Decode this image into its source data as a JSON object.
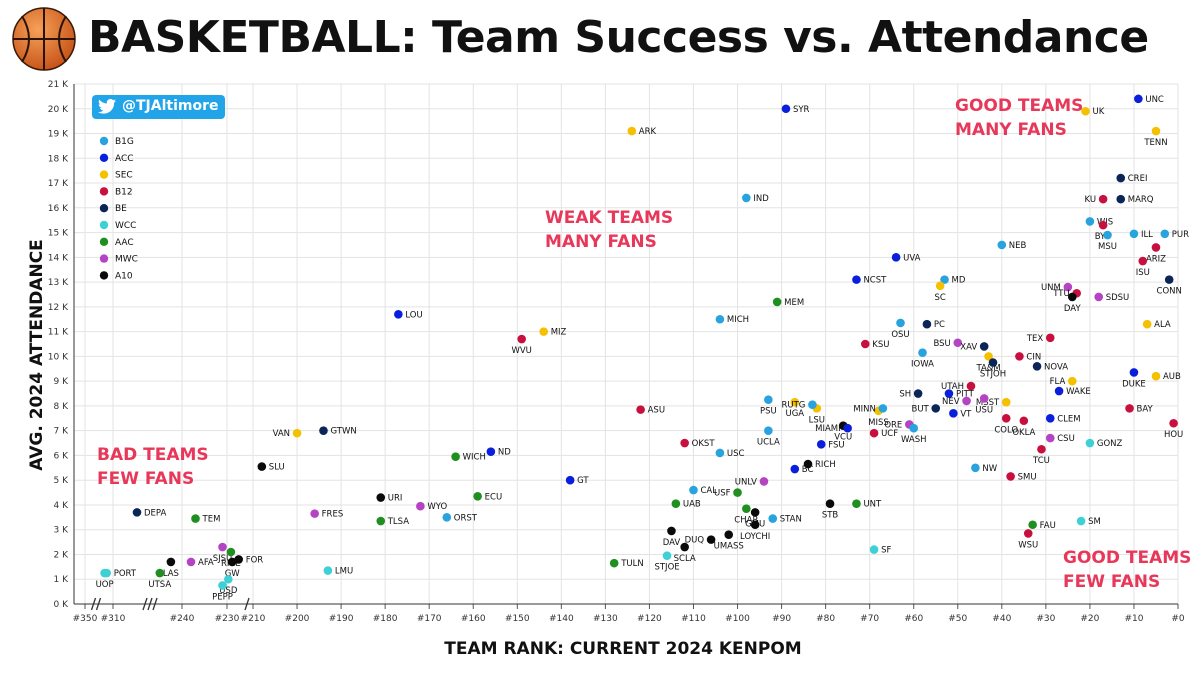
{
  "title": "BASKETBALL:  Team Success vs. Attendance",
  "twitter": {
    "handle": "@TJAltimore"
  },
  "zones": {
    "good_many": [
      "GOOD TEAMS",
      "MANY FANS"
    ],
    "weak_many": [
      "WEAK TEAMS",
      "MANY FANS"
    ],
    "bad_few": [
      "BAD TEAMS",
      "FEW FANS"
    ],
    "good_few": [
      "GOOD TEAMS",
      "FEW FANS"
    ]
  },
  "colors": {
    "B1G": "#29a3de",
    "ACC": "#0a1fdc",
    "SEC": "#f5c000",
    "B12": "#c8103e",
    "BE": "#0b2557",
    "WCC": "#3fd0d6",
    "AAC": "#1f8f1f",
    "MWC": "#b544c4",
    "A10": "#0a0a0a",
    "zone": "#e8385a",
    "twitter": "#21a5e8"
  },
  "chart_data": {
    "type": "scatter",
    "xlabel": "TEAM RANK: CURRENT 2024 KENPOM",
    "ylabel": "AVG. 2024 ATTENDANCE",
    "ylim": [
      0,
      21
    ],
    "x_reversed": true,
    "x_axis_break": true,
    "y_ticks": [
      "0 K",
      "1 K",
      "2 K",
      "3 K",
      "4 K",
      "5 K",
      "6 K",
      "7 K",
      "8 K",
      "9 K",
      "10 K",
      "11 K",
      "12 K",
      "13 K",
      "14 K",
      "15 K",
      "16 K",
      "17 K",
      "18 K",
      "19 K",
      "20 K",
      "21 K"
    ],
    "x_ticks": [
      "#350",
      "#310",
      "#240",
      "#230",
      "#210",
      "#200",
      "#190",
      "#180",
      "#170",
      "#160",
      "#150",
      "#140",
      "#130",
      "#120",
      "#110",
      "#100",
      "#90",
      "#80",
      "#70",
      "#60",
      "#50",
      "#40",
      "#30",
      "#20",
      "#10",
      "#0"
    ],
    "legend": [
      "B1G",
      "ACC",
      "SEC",
      "B12",
      "BE",
      "WCC",
      "AAC",
      "MWC",
      "A10"
    ],
    "legend_position": "top-left",
    "points": [
      {
        "label": "UNC",
        "conf": "ACC",
        "rank": 9,
        "att": 20.4
      },
      {
        "label": "SYR",
        "conf": "ACC",
        "rank": 89,
        "att": 20.0
      },
      {
        "label": "UK",
        "conf": "SEC",
        "rank": 21,
        "att": 19.9
      },
      {
        "label": "ARK",
        "conf": "SEC",
        "rank": 124,
        "att": 19.1
      },
      {
        "label": "TENN",
        "conf": "SEC",
        "rank": 5,
        "att": 19.1
      },
      {
        "label": "CREI",
        "conf": "BE",
        "rank": 13,
        "att": 17.2
      },
      {
        "label": "KU",
        "conf": "B12",
        "rank": 17,
        "att": 16.35
      },
      {
        "label": "MARQ",
        "conf": "BE",
        "rank": 13,
        "att": 16.35
      },
      {
        "label": "IND",
        "conf": "B1G",
        "rank": 98,
        "att": 16.4
      },
      {
        "label": "WIS",
        "conf": "B1G",
        "rank": 20,
        "att": 15.45
      },
      {
        "label": "BYU",
        "conf": "B12",
        "rank": 17,
        "att": 15.3
      },
      {
        "label": "MSU",
        "conf": "B1G",
        "rank": 16,
        "att": 14.9
      },
      {
        "label": "ILL",
        "conf": "B1G",
        "rank": 10,
        "att": 14.95
      },
      {
        "label": "PUR",
        "conf": "B1G",
        "rank": 3,
        "att": 14.95
      },
      {
        "label": "ARIZ",
        "conf": "B12",
        "rank": 5,
        "att": 14.4
      },
      {
        "label": "NEB",
        "conf": "B1G",
        "rank": 40,
        "att": 14.5
      },
      {
        "label": "UVA",
        "conf": "ACC",
        "rank": 64,
        "att": 14.0
      },
      {
        "label": "ISU",
        "conf": "B12",
        "rank": 8,
        "att": 13.85
      },
      {
        "label": "CONN",
        "conf": "BE",
        "rank": 2,
        "att": 13.1
      },
      {
        "label": "MD",
        "conf": "B1G",
        "rank": 53,
        "att": 13.1
      },
      {
        "label": "NCST",
        "conf": "ACC",
        "rank": 73,
        "att": 13.1
      },
      {
        "label": "SC",
        "conf": "SEC",
        "rank": 54,
        "att": 12.85
      },
      {
        "label": "UNM",
        "conf": "MWC",
        "rank": 25,
        "att": 12.8
      },
      {
        "label": "TTU",
        "conf": "B12",
        "rank": 23,
        "att": 12.55
      },
      {
        "label": "DAY",
        "conf": "A10",
        "rank": 24,
        "att": 12.4
      },
      {
        "label": "SDSU",
        "conf": "MWC",
        "rank": 18,
        "att": 12.4
      },
      {
        "label": "MEM",
        "conf": "AAC",
        "rank": 91,
        "att": 12.2
      },
      {
        "label": "LOU",
        "conf": "ACC",
        "rank": 177,
        "att": 11.7
      },
      {
        "label": "MICH",
        "conf": "B1G",
        "rank": 104,
        "att": 11.5
      },
      {
        "label": "OSU",
        "conf": "B1G",
        "rank": 63,
        "att": 11.35
      },
      {
        "label": "PC",
        "conf": "BE",
        "rank": 57,
        "att": 11.3
      },
      {
        "label": "ALA",
        "conf": "SEC",
        "rank": 7,
        "att": 11.3
      },
      {
        "label": "MIZ",
        "conf": "SEC",
        "rank": 144,
        "att": 11.0
      },
      {
        "label": "TEX",
        "conf": "B12",
        "rank": 29,
        "att": 10.75
      },
      {
        "label": "WVU",
        "conf": "B12",
        "rank": 149,
        "att": 10.7
      },
      {
        "label": "KSU",
        "conf": "B12",
        "rank": 71,
        "att": 10.5
      },
      {
        "label": "BSU",
        "conf": "MWC",
        "rank": 50,
        "att": 10.55
      },
      {
        "label": "XAV",
        "conf": "BE",
        "rank": 44,
        "att": 10.4
      },
      {
        "label": "IOWA",
        "conf": "B1G",
        "rank": 58,
        "att": 10.15
      },
      {
        "label": "TA&M",
        "conf": "SEC",
        "rank": 43,
        "att": 10.0
      },
      {
        "label": "CIN",
        "conf": "B12",
        "rank": 36,
        "att": 10.0
      },
      {
        "label": "STJOH",
        "conf": "BE",
        "rank": 42,
        "att": 9.75
      },
      {
        "label": "NOVA",
        "conf": "BE",
        "rank": 32,
        "att": 9.6
      },
      {
        "label": "DUKE",
        "conf": "ACC",
        "rank": 10,
        "att": 9.35
      },
      {
        "label": "FLA",
        "conf": "SEC",
        "rank": 24,
        "att": 9.0
      },
      {
        "label": "AUB",
        "conf": "SEC",
        "rank": 5,
        "att": 9.2
      },
      {
        "label": "UTAH",
        "conf": "B12",
        "rank": 47,
        "att": 8.8
      },
      {
        "label": "WAKE",
        "conf": "ACC",
        "rank": 27,
        "att": 8.6
      },
      {
        "label": "PSU",
        "conf": "B1G",
        "rank": 93,
        "att": 8.25
      },
      {
        "label": "SH",
        "conf": "BE",
        "rank": 59,
        "att": 8.5
      },
      {
        "label": "PITT",
        "conf": "ACC",
        "rank": 52,
        "att": 8.5
      },
      {
        "label": "NEV",
        "conf": "MWC",
        "rank": 48,
        "att": 8.2
      },
      {
        "label": "MSST",
        "conf": "SEC",
        "rank": 39,
        "att": 8.15
      },
      {
        "label": "LSU",
        "conf": "SEC",
        "rank": 82,
        "att": 7.9
      },
      {
        "label": "UGA",
        "conf": "SEC",
        "rank": 87,
        "att": 8.15
      },
      {
        "label": "RUTG",
        "conf": "B1G",
        "rank": 83,
        "att": 8.05
      },
      {
        "label": "BUT",
        "conf": "BE",
        "rank": 55,
        "att": 7.9
      },
      {
        "label": "USU",
        "conf": "MWC",
        "rank": 44,
        "att": 8.3
      },
      {
        "label": "BAY",
        "conf": "B12",
        "rank": 11,
        "att": 7.9
      },
      {
        "label": "VT",
        "conf": "ACC",
        "rank": 51,
        "att": 7.7
      },
      {
        "label": "ASU",
        "conf": "B12",
        "rank": 122,
        "att": 7.85
      },
      {
        "label": "MISS",
        "conf": "SEC",
        "rank": 68,
        "att": 7.8
      },
      {
        "label": "MINN",
        "conf": "B1G",
        "rank": 67,
        "att": 7.9
      },
      {
        "label": "CLEM",
        "conf": "ACC",
        "rank": 29,
        "att": 7.5
      },
      {
        "label": "COLO",
        "conf": "B12",
        "rank": 39,
        "att": 7.5
      },
      {
        "label": "OKLA",
        "conf": "B12",
        "rank": 35,
        "att": 7.4
      },
      {
        "label": "HOU",
        "conf": "B12",
        "rank": 1,
        "att": 7.3
      },
      {
        "label": "ORE",
        "conf": "MWC",
        "rank": 61,
        "att": 7.25
      },
      {
        "label": "VCU",
        "conf": "A10",
        "rank": 76,
        "att": 7.2
      },
      {
        "label": "MIAMI",
        "conf": "ACC",
        "rank": 75,
        "att": 7.1
      },
      {
        "label": "GTWN",
        "conf": "BE",
        "rank": 194,
        "att": 7.0
      },
      {
        "label": "UCLA",
        "conf": "B1G",
        "rank": 93,
        "att": 7.0
      },
      {
        "label": "WASH",
        "conf": "B1G",
        "rank": 60,
        "att": 7.1
      },
      {
        "label": "VAN",
        "conf": "SEC",
        "rank": 200,
        "att": 6.9
      },
      {
        "label": "UCF",
        "conf": "B12",
        "rank": 69,
        "att": 6.9
      },
      {
        "label": "CSU",
        "conf": "MWC",
        "rank": 29,
        "att": 6.7
      },
      {
        "label": "GONZ",
        "conf": "WCC",
        "rank": 20,
        "att": 6.5
      },
      {
        "label": "OKST",
        "conf": "B12",
        "rank": 112,
        "att": 6.5
      },
      {
        "label": "FSU",
        "conf": "ACC",
        "rank": 81,
        "att": 6.45
      },
      {
        "label": "TCU",
        "conf": "B12",
        "rank": 31,
        "att": 6.25
      },
      {
        "label": "ND",
        "conf": "ACC",
        "rank": 156,
        "att": 6.15
      },
      {
        "label": "USC",
        "conf": "B1G",
        "rank": 104,
        "att": 6.1
      },
      {
        "label": "WICH",
        "conf": "AAC",
        "rank": 164,
        "att": 5.95
      },
      {
        "label": "RICH",
        "conf": "A10",
        "rank": 84,
        "att": 5.65
      },
      {
        "label": "SLU",
        "conf": "A10",
        "rank": 208,
        "att": 5.55
      },
      {
        "label": "BC",
        "conf": "ACC",
        "rank": 87,
        "att": 5.45
      },
      {
        "label": "NW",
        "conf": "B1G",
        "rank": 46,
        "att": 5.5
      },
      {
        "label": "UNLV",
        "conf": "MWC",
        "rank": 94,
        "att": 4.95
      },
      {
        "label": "SMU",
        "conf": "B12",
        "rank": 38,
        "att": 5.15
      },
      {
        "label": "GT",
        "conf": "ACC",
        "rank": 138,
        "att": 5.0
      },
      {
        "label": "CAL",
        "conf": "B1G",
        "rank": 110,
        "att": 4.6
      },
      {
        "label": "USF",
        "conf": "AAC",
        "rank": 100,
        "att": 4.5
      },
      {
        "label": "ECU",
        "conf": "AAC",
        "rank": 159,
        "att": 4.35
      },
      {
        "label": "URI",
        "conf": "A10",
        "rank": 181,
        "att": 4.3
      },
      {
        "label": "WYO",
        "conf": "MWC",
        "rank": 172,
        "att": 3.95
      },
      {
        "label": "UAB",
        "conf": "AAC",
        "rank": 114,
        "att": 4.05
      },
      {
        "label": "STB",
        "conf": "A10",
        "rank": 79,
        "att": 4.05
      },
      {
        "label": "UNT",
        "conf": "AAC",
        "rank": 73,
        "att": 4.05
      },
      {
        "label": "GMU",
        "conf": "A10",
        "rank": 96,
        "att": 3.7
      },
      {
        "label": "CHAR",
        "conf": "AAC",
        "rank": 98,
        "att": 3.85
      },
      {
        "label": "DEPA",
        "conf": "BE",
        "rank": 265,
        "att": 3.7
      },
      {
        "label": "FRES",
        "conf": "MWC",
        "rank": 196,
        "att": 3.65
      },
      {
        "label": "ORST",
        "conf": "B1G",
        "rank": 166,
        "att": 3.5
      },
      {
        "label": "TEM",
        "conf": "AAC",
        "rank": 237,
        "att": 3.45
      },
      {
        "label": "STAN",
        "conf": "B1G",
        "rank": 92,
        "att": 3.45
      },
      {
        "label": "TLSA",
        "conf": "AAC",
        "rank": 181,
        "att": 3.35
      },
      {
        "label": "SM",
        "conf": "WCC",
        "rank": 22,
        "att": 3.35
      },
      {
        "label": "LOYCHI",
        "conf": "A10",
        "rank": 96,
        "att": 3.2
      },
      {
        "label": "FAU",
        "conf": "AAC",
        "rank": 33,
        "att": 3.2
      },
      {
        "label": "DAV",
        "conf": "A10",
        "rank": 115,
        "att": 2.95
      },
      {
        "label": "WSU",
        "conf": "B12",
        "rank": 34,
        "att": 2.85
      },
      {
        "label": "UMASS",
        "conf": "A10",
        "rank": 102,
        "att": 2.8
      },
      {
        "label": "DUQ",
        "conf": "A10",
        "rank": 106,
        "att": 2.6
      },
      {
        "label": "SJSU",
        "conf": "MWC",
        "rank": 231,
        "att": 2.3
      },
      {
        "label": "SCLA",
        "conf": "A10",
        "rank": 112,
        "att": 2.3
      },
      {
        "label": "SF",
        "conf": "WCC",
        "rank": 69,
        "att": 2.2
      },
      {
        "label": "RICE",
        "conf": "AAC",
        "rank": 227,
        "att": 2.1
      },
      {
        "label": "STJOE",
        "conf": "WCC",
        "rank": 116,
        "att": 1.95
      },
      {
        "label": "FOR",
        "conf": "A10",
        "rank": 221,
        "att": 1.8
      },
      {
        "label": "LAS",
        "conf": "A10",
        "rank": 243,
        "att": 1.7
      },
      {
        "label": "AFA",
        "conf": "MWC",
        "rank": 238,
        "att": 1.7
      },
      {
        "label": "GW",
        "conf": "A10",
        "rank": 226,
        "att": 1.7
      },
      {
        "label": "TULN",
        "conf": "AAC",
        "rank": 128,
        "att": 1.65
      },
      {
        "label": "UTSA",
        "conf": "AAC",
        "rank": 246,
        "att": 1.25
      },
      {
        "label": "LMU",
        "conf": "WCC",
        "rank": 193,
        "att": 1.35
      },
      {
        "label": "PORT",
        "conf": "WCC",
        "rank": 319,
        "att": 1.25
      },
      {
        "label": "UOP",
        "conf": "WCC",
        "rank": 322,
        "att": 1.25
      },
      {
        "label": "USD",
        "conf": "WCC",
        "rank": 229,
        "att": 1.0
      },
      {
        "label": "PEPP",
        "conf": "WCC",
        "rank": 231,
        "att": 0.75
      }
    ]
  }
}
